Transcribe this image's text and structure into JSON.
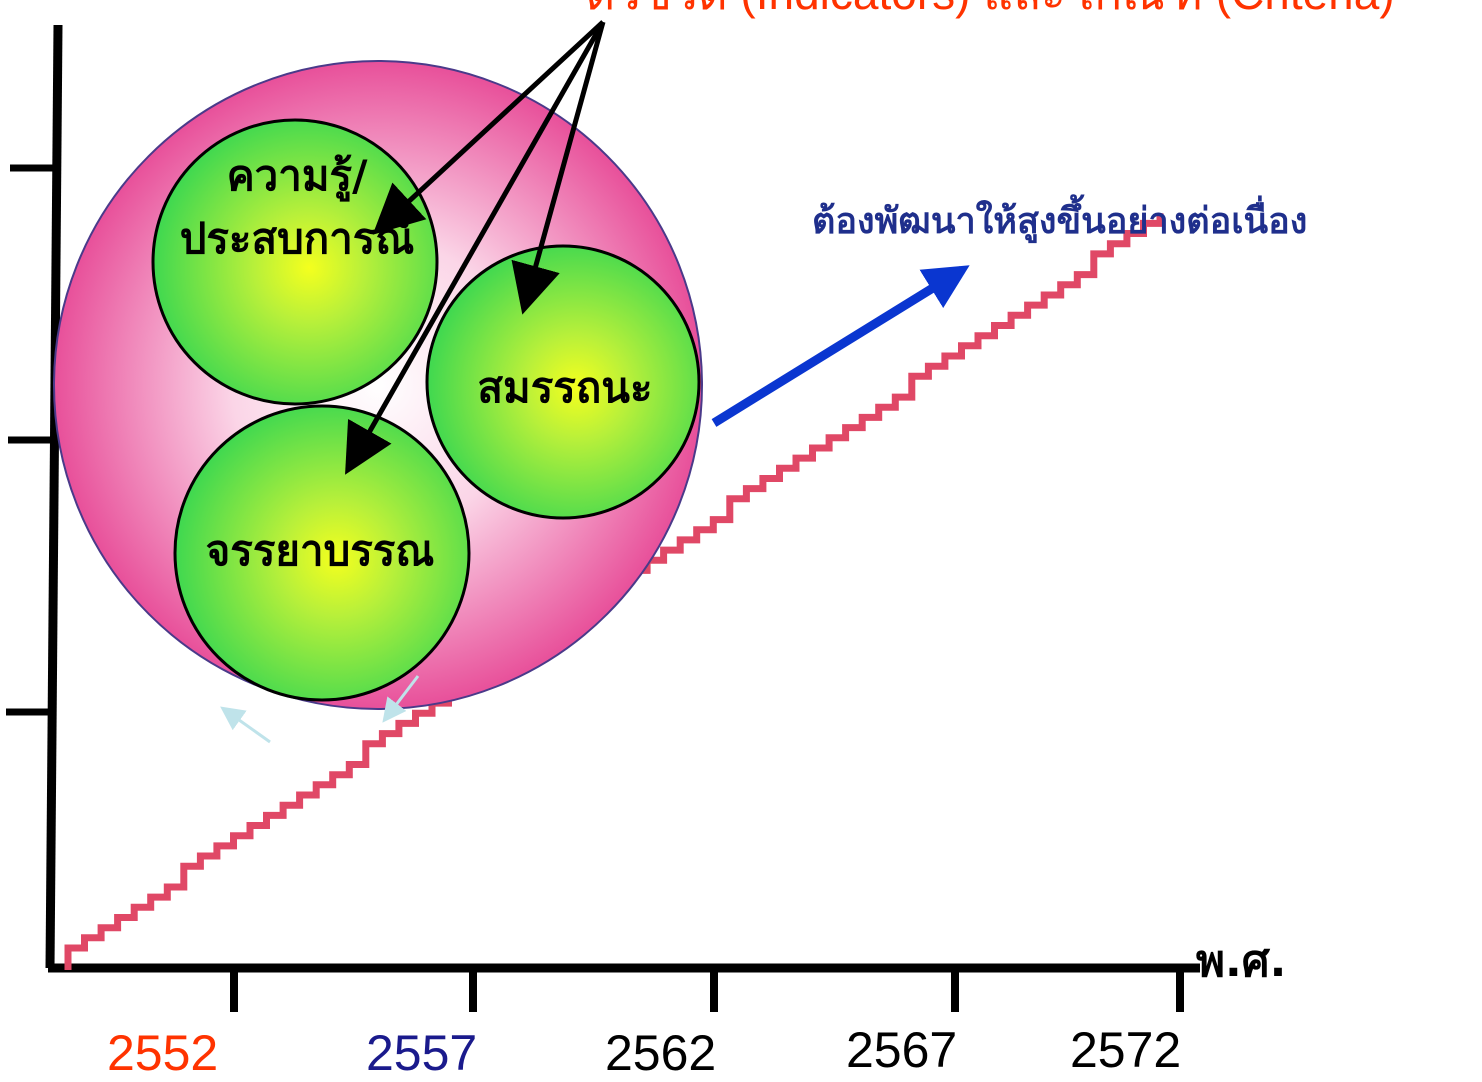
{
  "top_text": "ตัวชี้วัด (Indicators) และ เกณฑ์ (Criteria)",
  "develop_label": "ต้องพัฒนาให้สูงขึ้นอย่างต่อเนื่อง",
  "axis_unit": "พ.ศ.",
  "years": [
    {
      "label": "2552",
      "color": "#ff3300"
    },
    {
      "label": "2557",
      "color": "#1a1a8c"
    },
    {
      "label": "2562",
      "color": "#000000"
    },
    {
      "label": "2567",
      "color": "#000000"
    },
    {
      "label": "2572",
      "color": "#000000"
    }
  ],
  "circles": {
    "knowledge_line1": "ความรู้/",
    "knowledge_line2": "ประสบการณ์",
    "competency": "สมรรถนะ",
    "ethics": "จรรยาบรรณ"
  },
  "colors": {
    "outer_circle": "#e8509a",
    "inner_circle": "#4fe04f",
    "step_line": "#e04866",
    "develop_arrow": "#0a36d0",
    "title_text": "#ff3300"
  }
}
